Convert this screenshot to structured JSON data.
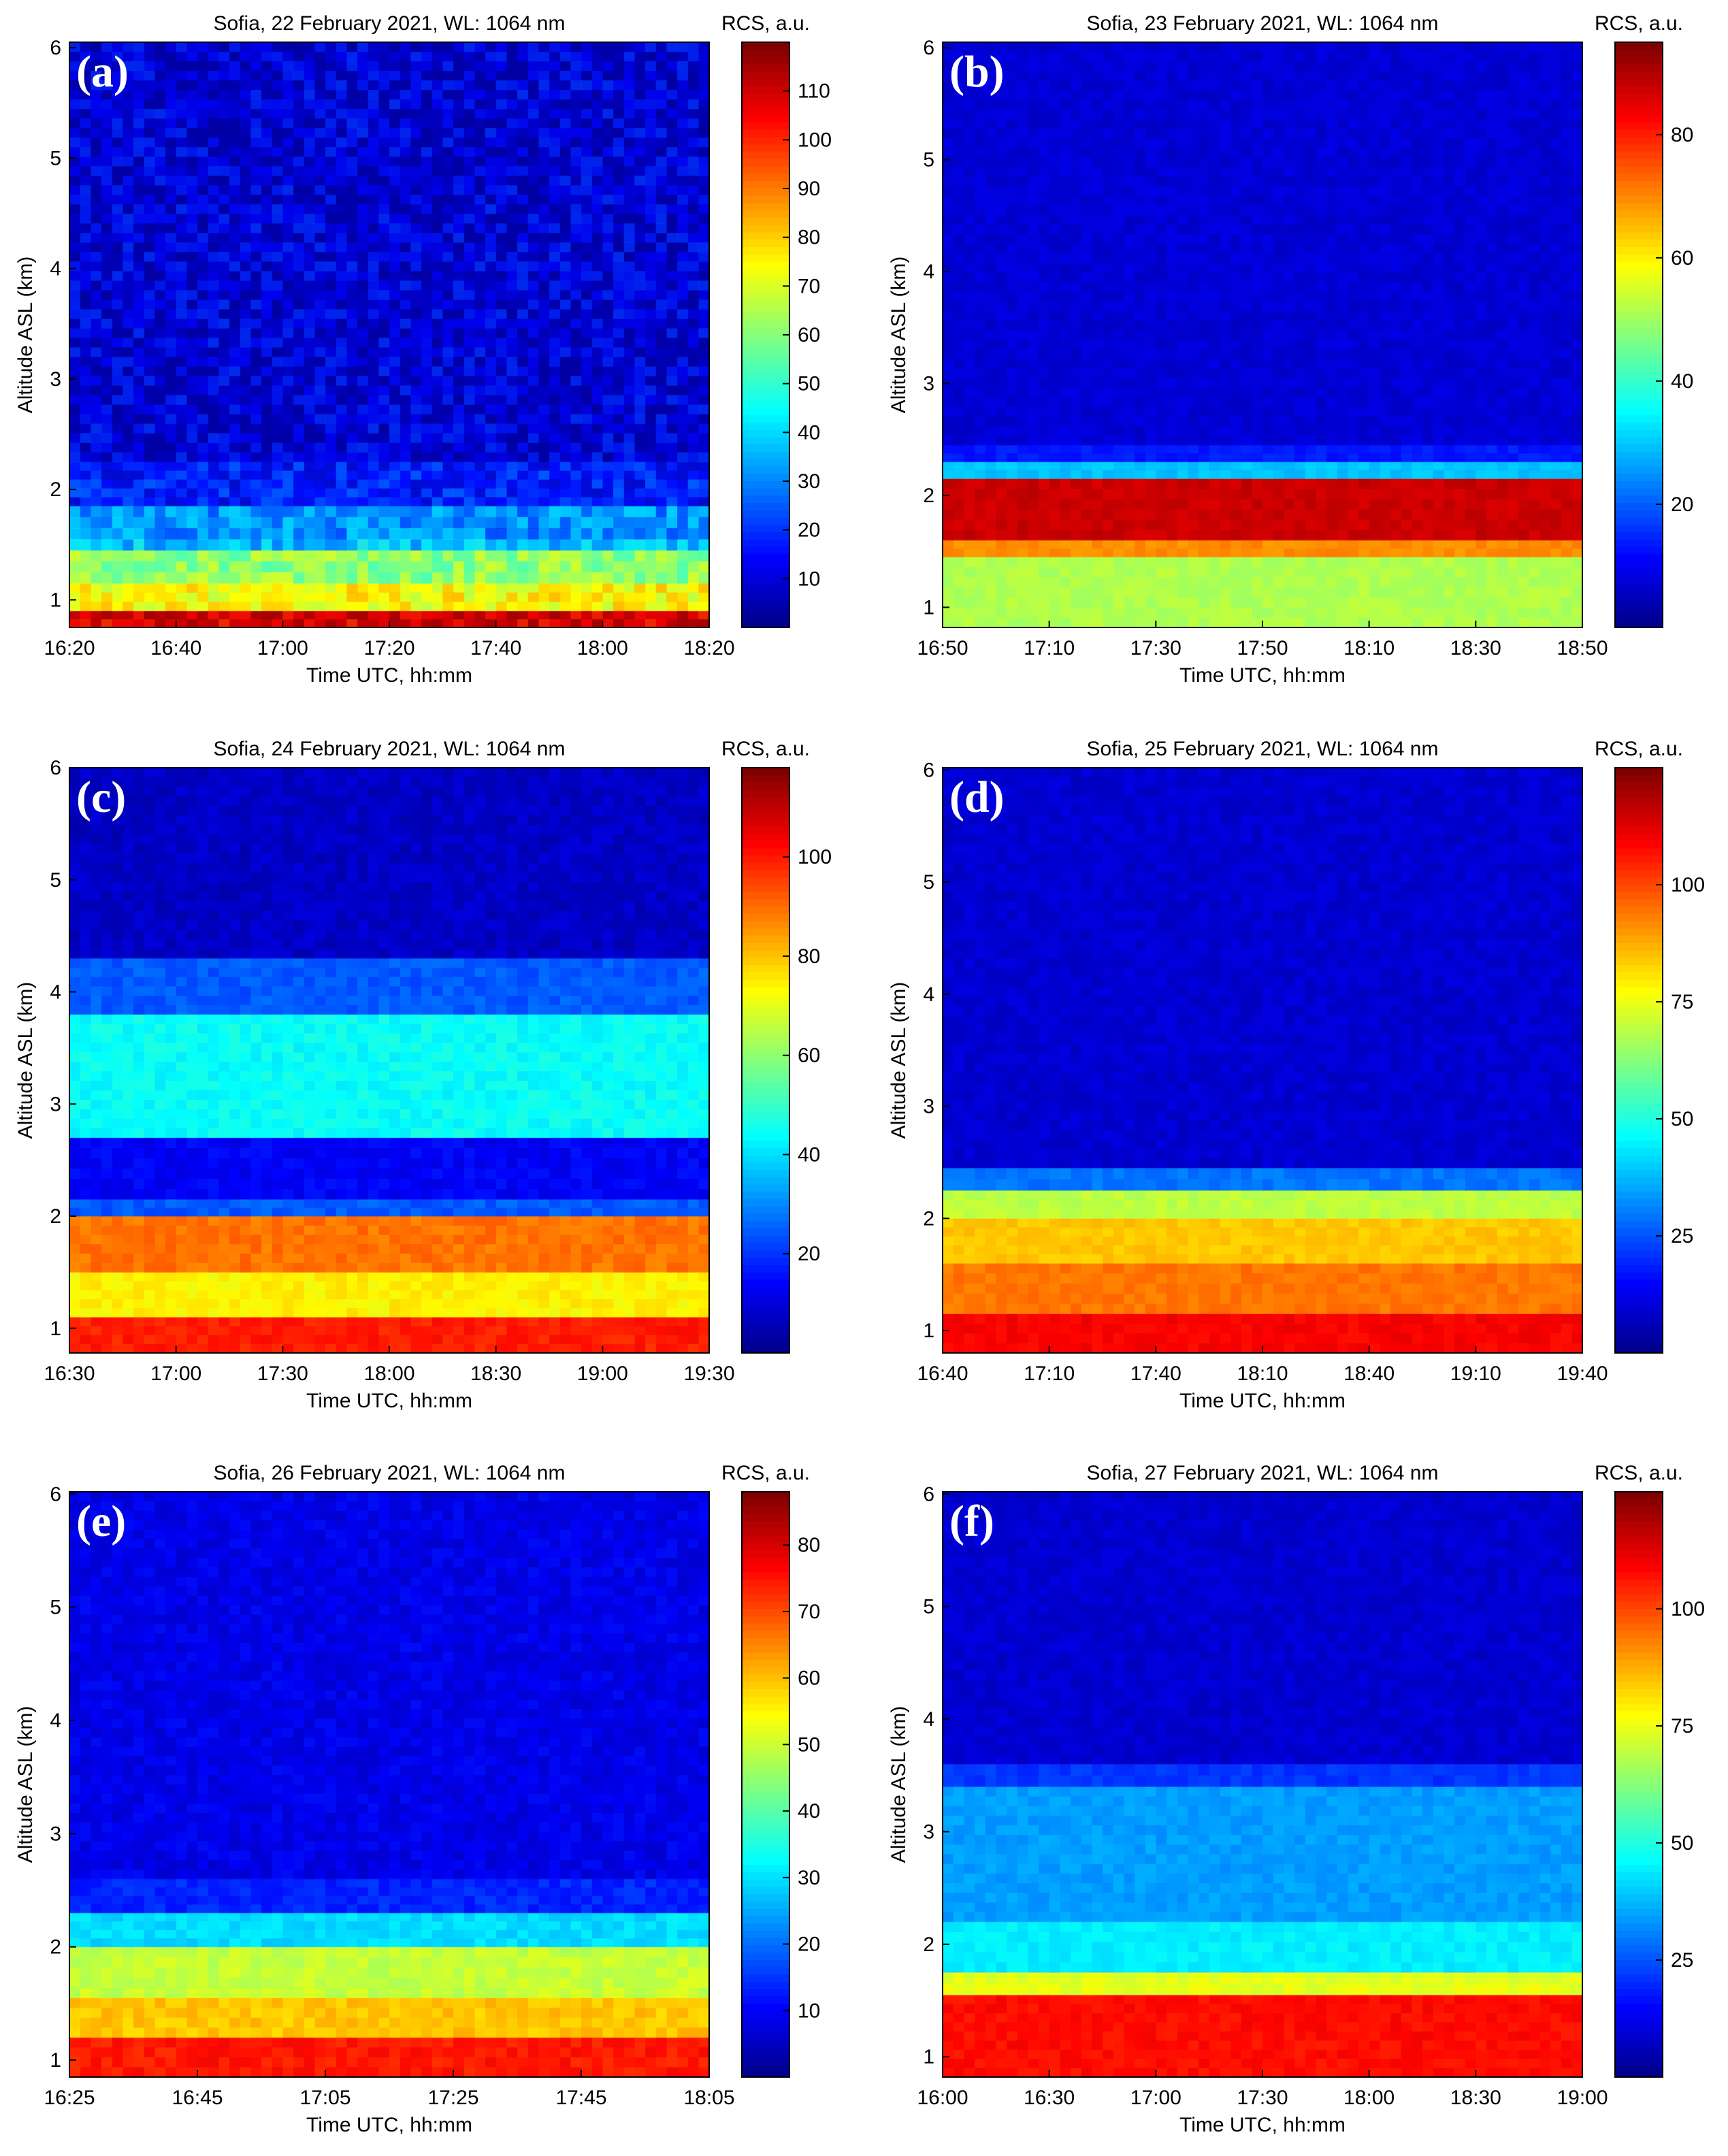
{
  "chart_data": [
    {
      "type": "heatmap",
      "panel_label": "(a)",
      "title": "Sofia, 22 February 2021, WL: 1064 nm",
      "xlabel": "Time UTC, hh:mm",
      "ylabel": "Altitude ASL (km)",
      "x_ticks": [
        "16:20",
        "16:40",
        "17:00",
        "17:20",
        "17:40",
        "18:00",
        "18:20"
      ],
      "y_ticks": [
        1,
        2,
        3,
        4,
        5,
        6
      ],
      "ylim": [
        0.75,
        6.05
      ],
      "colorbar_label": "RCS, a.u.",
      "colorbar_ticks": [
        10,
        20,
        30,
        40,
        50,
        60,
        70,
        80,
        90,
        100,
        110
      ],
      "colorbar_range": [
        0,
        120
      ],
      "layers": [
        {
          "from_km": 0.75,
          "to_km": 0.9,
          "value": 110
        },
        {
          "from_km": 0.9,
          "to_km": 1.15,
          "value": 75
        },
        {
          "from_km": 1.15,
          "to_km": 1.45,
          "value": 62
        },
        {
          "from_km": 1.45,
          "to_km": 1.55,
          "value": 38
        },
        {
          "from_km": 1.55,
          "to_km": 1.85,
          "value": 32
        },
        {
          "from_km": 1.85,
          "to_km": 2.25,
          "value": 18
        },
        {
          "from_km": 2.25,
          "to_km": 6.05,
          "value": 10
        }
      ],
      "noise": 14
    },
    {
      "type": "heatmap",
      "panel_label": "(b)",
      "title": "Sofia, 23 February 2021, WL: 1064 nm",
      "xlabel": "Time UTC, hh:mm",
      "ylabel": "Altitude ASL (km)",
      "x_ticks": [
        "16:50",
        "17:10",
        "17:30",
        "17:50",
        "18:10",
        "18:30",
        "18:50"
      ],
      "y_ticks": [
        1,
        2,
        3,
        4,
        5,
        6
      ],
      "ylim": [
        0.82,
        6.05
      ],
      "colorbar_label": "RCS, a.u.",
      "colorbar_ticks": [
        20,
        40,
        60,
        80
      ],
      "colorbar_range": [
        0,
        95
      ],
      "layers": [
        {
          "from_km": 0.82,
          "to_km": 1.45,
          "value": 52
        },
        {
          "from_km": 1.45,
          "to_km": 1.6,
          "value": 70
        },
        {
          "from_km": 1.6,
          "to_km": 2.15,
          "value": 88
        },
        {
          "from_km": 2.15,
          "to_km": 2.3,
          "value": 30
        },
        {
          "from_km": 2.3,
          "to_km": 2.45,
          "value": 14
        },
        {
          "from_km": 2.45,
          "to_km": 6.05,
          "value": 8
        }
      ],
      "noise": 3
    },
    {
      "type": "heatmap",
      "panel_label": "(c)",
      "title": "Sofia, 24 February 2021, WL: 1064 nm",
      "xlabel": "Time UTC, hh:mm",
      "ylabel": "Altitude ASL (km)",
      "x_ticks": [
        "16:30",
        "17:00",
        "17:30",
        "18:00",
        "18:30",
        "19:00",
        "19:30"
      ],
      "y_ticks": [
        1,
        2,
        3,
        4,
        5,
        6
      ],
      "ylim": [
        0.78,
        6.0
      ],
      "colorbar_label": "RCS, a.u.",
      "colorbar_ticks": [
        20,
        40,
        60,
        80,
        100
      ],
      "colorbar_range": [
        0,
        118
      ],
      "layers": [
        {
          "from_km": 0.78,
          "to_km": 1.1,
          "value": 100
        },
        {
          "from_km": 1.1,
          "to_km": 1.5,
          "value": 75
        },
        {
          "from_km": 1.5,
          "to_km": 2.0,
          "value": 90
        },
        {
          "from_km": 2.0,
          "to_km": 2.15,
          "value": 25
        },
        {
          "from_km": 2.15,
          "to_km": 2.7,
          "value": 14
        },
        {
          "from_km": 2.7,
          "to_km": 3.8,
          "value": 45
        },
        {
          "from_km": 3.8,
          "to_km": 4.3,
          "value": 25
        },
        {
          "from_km": 4.3,
          "to_km": 6.0,
          "value": 8
        }
      ],
      "noise": 5
    },
    {
      "type": "heatmap",
      "panel_label": "(d)",
      "title": "Sofia, 25 February 2021, WL: 1064 nm",
      "xlabel": "Time UTC, hh:mm",
      "ylabel": "Altitude ASL (km)",
      "x_ticks": [
        "16:40",
        "17:10",
        "17:40",
        "18:10",
        "18:40",
        "19:10",
        "19:40"
      ],
      "y_ticks": [
        1,
        2,
        3,
        4,
        5,
        6
      ],
      "ylim": [
        0.8,
        6.02
      ],
      "colorbar_label": "RCS, a.u.",
      "colorbar_ticks": [
        25,
        50,
        75,
        100
      ],
      "colorbar_range": [
        0,
        125
      ],
      "layers": [
        {
          "from_km": 0.8,
          "to_km": 1.15,
          "value": 110
        },
        {
          "from_km": 1.15,
          "to_km": 1.6,
          "value": 95
        },
        {
          "from_km": 1.6,
          "to_km": 2.0,
          "value": 85
        },
        {
          "from_km": 2.0,
          "to_km": 2.25,
          "value": 70
        },
        {
          "from_km": 2.25,
          "to_km": 2.45,
          "value": 30
        },
        {
          "from_km": 2.45,
          "to_km": 6.02,
          "value": 10
        }
      ],
      "noise": 4
    },
    {
      "type": "heatmap",
      "panel_label": "(e)",
      "title": "Sofia, 26 February 2021, WL: 1064 nm",
      "xlabel": "Time UTC, hh:mm",
      "ylabel": "Altitude ASL (km)",
      "x_ticks": [
        "16:25",
        "16:45",
        "17:05",
        "17:25",
        "17:45",
        "18:05"
      ],
      "y_ticks": [
        1,
        2,
        3,
        4,
        5,
        6
      ],
      "ylim": [
        0.85,
        6.02
      ],
      "colorbar_label": "RCS, a.u.",
      "colorbar_ticks": [
        10,
        20,
        30,
        40,
        50,
        60,
        70,
        80
      ],
      "colorbar_range": [
        0,
        88
      ],
      "layers": [
        {
          "from_km": 0.85,
          "to_km": 1.2,
          "value": 75
        },
        {
          "from_km": 1.2,
          "to_km": 1.55,
          "value": 60
        },
        {
          "from_km": 1.55,
          "to_km": 2.0,
          "value": 50
        },
        {
          "from_km": 2.0,
          "to_km": 2.3,
          "value": 30
        },
        {
          "from_km": 2.3,
          "to_km": 2.6,
          "value": 14
        },
        {
          "from_km": 2.6,
          "to_km": 6.02,
          "value": 9
        }
      ],
      "noise": 4
    },
    {
      "type": "heatmap",
      "panel_label": "(f)",
      "title": "Sofia, 27 February 2021, WL: 1064 nm",
      "xlabel": "Time UTC, hh:mm",
      "ylabel": "Altitude ASL (km)",
      "x_ticks": [
        "16:00",
        "16:30",
        "17:00",
        "17:30",
        "18:00",
        "18:30",
        "19:00"
      ],
      "y_ticks": [
        1,
        2,
        3,
        4,
        5,
        6
      ],
      "ylim": [
        0.82,
        6.02
      ],
      "colorbar_label": "RCS, a.u.",
      "colorbar_ticks": [
        25,
        50,
        75,
        100
      ],
      "colorbar_range": [
        0,
        125
      ],
      "layers": [
        {
          "from_km": 0.82,
          "to_km": 1.55,
          "value": 108
        },
        {
          "from_km": 1.55,
          "to_km": 1.75,
          "value": 75
        },
        {
          "from_km": 1.75,
          "to_km": 2.2,
          "value": 45
        },
        {
          "from_km": 2.2,
          "to_km": 3.4,
          "value": 35
        },
        {
          "from_km": 3.4,
          "to_km": 3.6,
          "value": 22
        },
        {
          "from_km": 3.6,
          "to_km": 6.02,
          "value": 10
        }
      ],
      "noise": 4
    }
  ]
}
